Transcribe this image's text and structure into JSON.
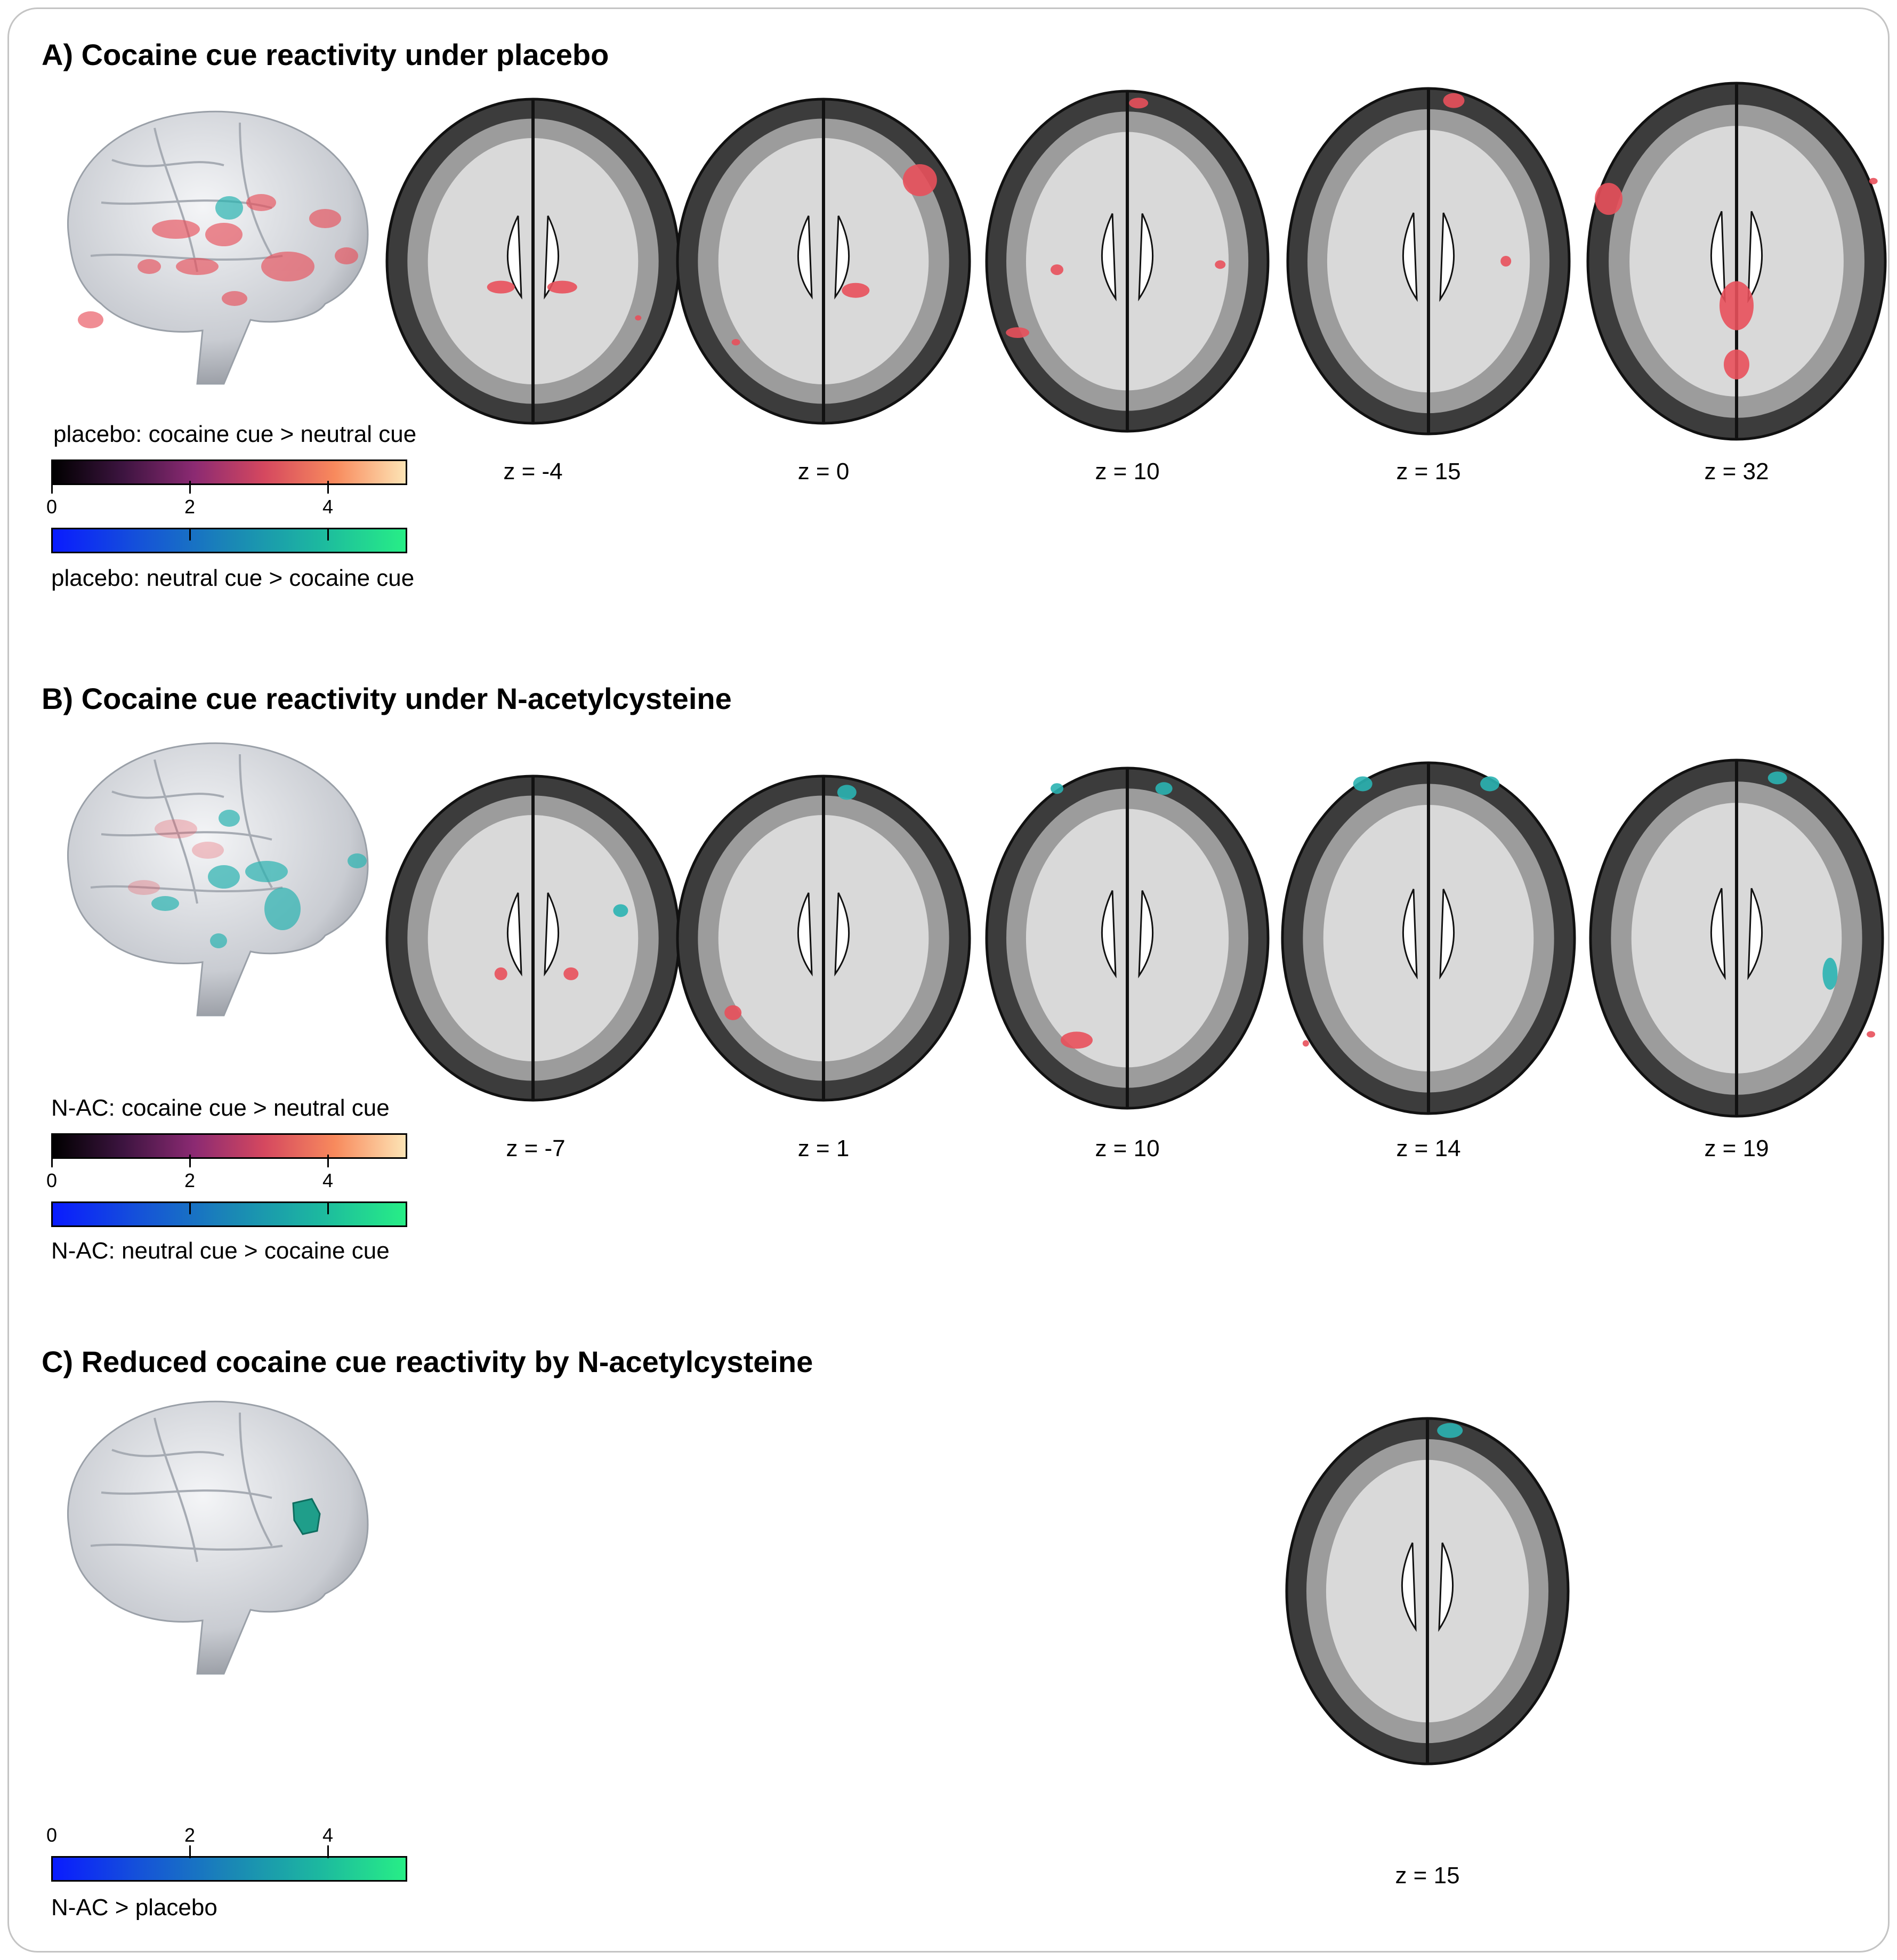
{
  "colors": {
    "hot": [
      "#000000",
      "#3d1440",
      "#8b2a72",
      "#d5485f",
      "#f88a5d",
      "#fde4b5"
    ],
    "cool": [
      "#0a1bff",
      "#1553d8",
      "#1a86b6",
      "#1cb7a0",
      "#27ee86"
    ],
    "activation_red": "#e8505b",
    "activation_teal": "#2ab3b1",
    "frame": "#c4c4c4"
  },
  "colorbar_ticks": [
    "0",
    "2",
    "4"
  ],
  "panels": {
    "a": {
      "title": "A) Cocaine cue reactivity under placebo",
      "legend_top": "placebo: cocaine cue > neutral cue",
      "legend_bottom": "placebo: neutral cue > cocaine cue",
      "slices": [
        "z = -4",
        "z = 0",
        "z = 10",
        "z = 15",
        "z = 32"
      ]
    },
    "b": {
      "title": "B) Cocaine cue reactivity under N-acetylcysteine",
      "legend_top": "N-AC: cocaine cue > neutral cue",
      "legend_bottom": "N-AC: neutral cue > cocaine cue",
      "slices": [
        "z = -7",
        "z = 1",
        "z = 10",
        "z = 14",
        "z = 19"
      ]
    },
    "c": {
      "title": "C) Reduced cocaine cue reactivity by N-acetylcysteine",
      "legend_bottom": "N-AC > placebo",
      "slices": [
        "z = 15"
      ]
    }
  }
}
